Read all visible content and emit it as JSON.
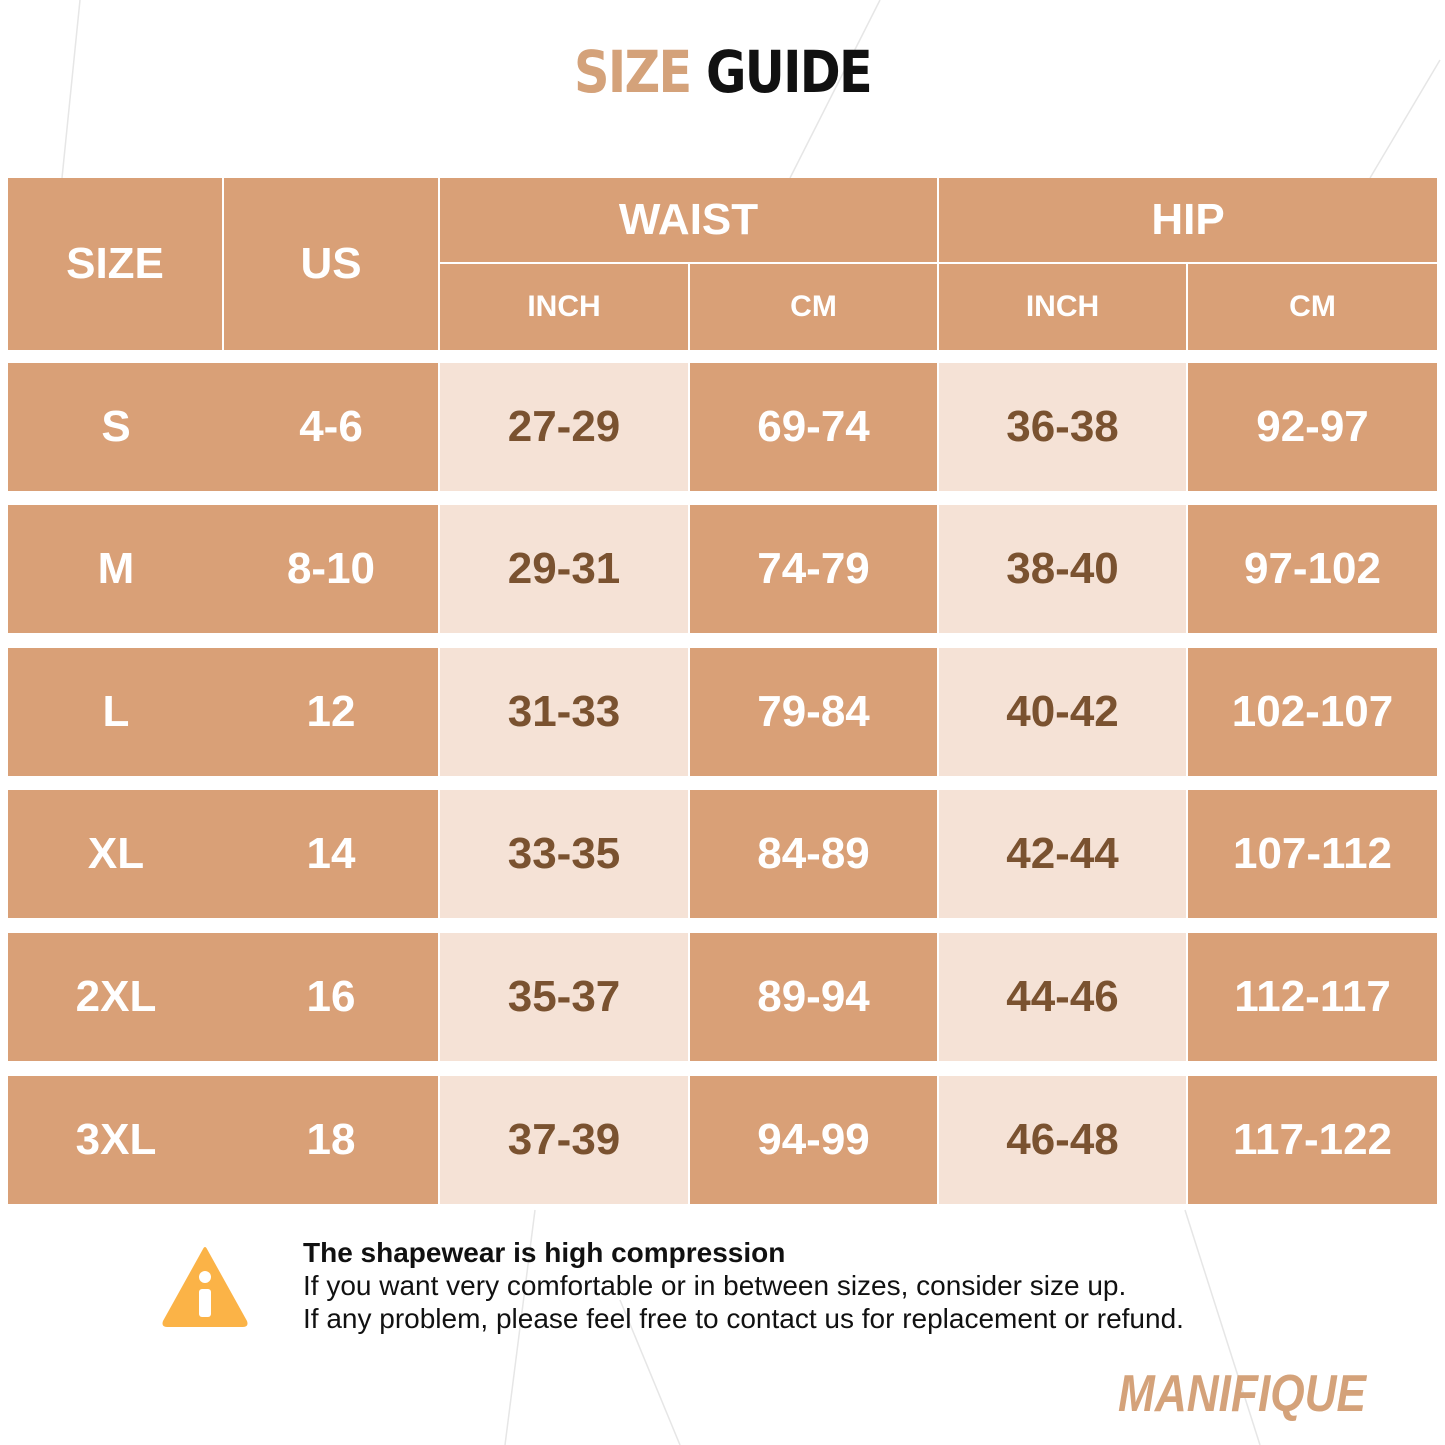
{
  "title": {
    "first": "SIZE",
    "second": "GUIDE"
  },
  "table": {
    "headers": {
      "size": "SIZE",
      "us": "US",
      "waist": "WAIST",
      "hip": "HIP",
      "waist_inch": "INCH",
      "waist_cm": "CM",
      "hip_inch": "INCH",
      "hip_cm": "CM"
    },
    "rows": [
      [
        "S",
        "4-6",
        "27-29",
        "69-74",
        "36-38",
        "92-97"
      ],
      [
        "M",
        "8-10",
        "29-31",
        "74-79",
        "38-40",
        "97-102"
      ],
      [
        "L",
        "12",
        "31-33",
        "79-84",
        "40-42",
        "102-107"
      ],
      [
        "XL",
        "14",
        "33-35",
        "84-89",
        "42-44",
        "107-112"
      ],
      [
        "2XL",
        "16",
        "35-37",
        "89-94",
        "44-46",
        "112-117"
      ],
      [
        "3XL",
        "18",
        "37-39",
        "94-99",
        "46-48",
        "117-122"
      ]
    ]
  },
  "note": {
    "heading": "The shapewear is high compression",
    "lines": [
      "If you want very comfortable or in between sizes, consider size up.",
      "If any problem, please feel free to contact us for replacement or refund."
    ]
  },
  "brand": "MANIFIQUE"
}
